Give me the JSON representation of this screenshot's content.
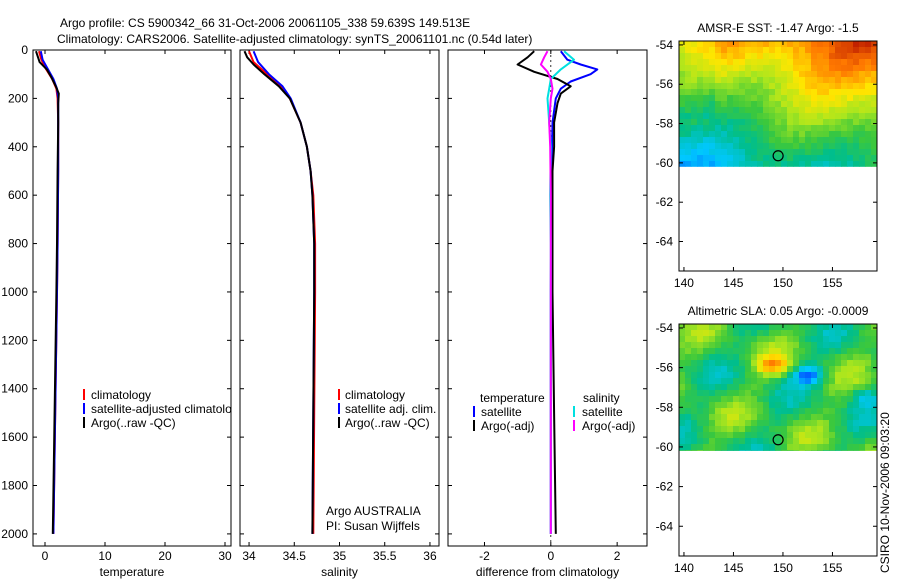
{
  "header": {
    "title_line1": "Argo profile: CS 5900342_66 31-Oct-2006 20061105_338 59.639S 149.513E",
    "title_line2": "Climatology: CARS2006. Satellite-adjusted climatology: synTS_20061101.nc (0.54d later)"
  },
  "credit": "CSIRO 10-Nov-2006 09:03:20",
  "colors": {
    "climatology": "#ff0000",
    "satellite": "#0000ff",
    "argo": "#000000",
    "sal_satellite": "#00e0e0",
    "sal_argo": "#ff00ff"
  },
  "chart_data": [
    {
      "id": "temperature",
      "type": "line",
      "xlabel": "temperature",
      "ylabel": "",
      "xlim": [
        -2,
        31
      ],
      "ylim": [
        2050,
        0
      ],
      "xticks": [
        0,
        10,
        20,
        30
      ],
      "xtick_labels": [
        "0",
        "10",
        "20",
        "30"
      ],
      "yticks": [
        0,
        200,
        400,
        600,
        800,
        1000,
        1200,
        1400,
        1600,
        1800,
        2000
      ],
      "ytick_labels": [
        "0",
        "200",
        "400",
        "600",
        "800",
        "1000",
        "1200",
        "1400",
        "1600",
        "1800",
        "2000"
      ],
      "legend": [
        "climatology",
        "satellite-adjusted climatology",
        "Argo(..raw -QC)"
      ],
      "series": [
        {
          "name": "climatology",
          "color": "#ff0000",
          "depth": [
            5,
            40,
            80,
            120,
            160,
            200,
            300,
            500,
            800,
            1000,
            1500,
            2000
          ],
          "values": [
            -1.0,
            -0.6,
            0.2,
            1.2,
            1.9,
            2.1,
            2.2,
            2.2,
            2.1,
            2.0,
            1.7,
            1.4
          ]
        },
        {
          "name": "satellite",
          "color": "#0000ff",
          "depth": [
            5,
            40,
            80,
            120,
            160,
            200,
            300,
            500,
            800,
            1000,
            1500,
            2000
          ],
          "values": [
            -0.7,
            -0.4,
            0.5,
            1.4,
            2.0,
            2.2,
            2.2,
            2.2,
            2.1,
            2.0,
            1.7,
            1.4
          ]
        },
        {
          "name": "Argo",
          "color": "#000000",
          "depth": [
            5,
            20,
            50,
            80,
            110,
            150,
            180,
            220,
            300,
            500,
            800,
            1000,
            1500,
            2000
          ],
          "values": [
            -1.5,
            -1.3,
            -0.9,
            0.3,
            1.0,
            1.8,
            2.3,
            2.2,
            2.2,
            2.1,
            2.0,
            1.9,
            1.6,
            1.3
          ]
        }
      ]
    },
    {
      "id": "salinity",
      "type": "line",
      "xlabel": "salinity",
      "ylabel": "",
      "xlim": [
        33.9,
        36.1
      ],
      "ylim": [
        2050,
        0
      ],
      "xticks": [
        34,
        34.5,
        35,
        35.5,
        36
      ],
      "xtick_labels": [
        "34",
        "34.5",
        "35",
        "35.5",
        "36"
      ],
      "legend": [
        "climatology",
        "satellite adj. clim.",
        "Argo(..raw -QC)"
      ],
      "annotation": [
        "Argo AUSTRALIA",
        "PI: Susan Wijffels"
      ],
      "series": [
        {
          "name": "climatology",
          "color": "#ff0000",
          "depth": [
            5,
            50,
            100,
            150,
            200,
            300,
            400,
            500,
            600,
            800,
            1000,
            1500,
            2000
          ],
          "values": [
            34.0,
            34.05,
            34.2,
            34.35,
            34.45,
            34.57,
            34.64,
            34.68,
            34.71,
            34.73,
            34.73,
            34.72,
            34.71
          ]
        },
        {
          "name": "satellite",
          "color": "#0000ff",
          "depth": [
            5,
            50,
            100,
            150,
            200,
            300,
            400,
            500,
            600,
            800,
            1000,
            1500,
            2000
          ],
          "values": [
            34.05,
            34.1,
            34.22,
            34.37,
            34.46,
            34.57,
            34.64,
            34.68,
            34.7,
            34.72,
            34.72,
            34.71,
            34.7
          ]
        },
        {
          "name": "Argo",
          "color": "#000000",
          "depth": [
            5,
            30,
            60,
            100,
            150,
            200,
            300,
            400,
            500,
            600,
            800,
            1000,
            1500,
            2000
          ],
          "values": [
            33.95,
            33.98,
            34.05,
            34.17,
            34.33,
            34.45,
            34.57,
            34.64,
            34.68,
            34.7,
            34.72,
            34.72,
            34.71,
            34.7
          ]
        }
      ]
    },
    {
      "id": "difference",
      "type": "line",
      "xlabel": "difference from climatology",
      "ylabel": "",
      "xlim": [
        -3.1,
        2.9
      ],
      "ylim": [
        2050,
        0
      ],
      "xticks": [
        -2,
        0,
        2
      ],
      "xtick_labels": [
        "-2",
        "0",
        "2"
      ],
      "legend_groups": [
        {
          "title": "temperature",
          "items": [
            "satellite",
            "Argo(-adj)"
          ]
        },
        {
          "title": "salinity",
          "items": [
            "satellite",
            "Argo(-adj)"
          ]
        }
      ],
      "series": [
        {
          "name": "temperature satellite",
          "color": "#0000ff",
          "depth": [
            5,
            40,
            60,
            80,
            100,
            130,
            160,
            200,
            300,
            500,
            1000,
            1500,
            2000
          ],
          "values": [
            0.3,
            0.5,
            0.9,
            1.4,
            1.2,
            0.6,
            0.3,
            0.15,
            0.05,
            0.02,
            0.0,
            0.0,
            0.0
          ]
        },
        {
          "name": "temperature Argo(-adj)",
          "color": "#000000",
          "depth": [
            5,
            30,
            60,
            90,
            120,
            150,
            180,
            220,
            300,
            400,
            500,
            1000,
            1500,
            2000
          ],
          "values": [
            -0.5,
            -0.7,
            -1.0,
            -0.5,
            0.2,
            0.6,
            0.3,
            0.2,
            0.1,
            0.1,
            0.05,
            0.05,
            0.1,
            0.15
          ]
        },
        {
          "name": "salinity satellite",
          "color": "#00e0e0",
          "depth": [
            5,
            40,
            80,
            120,
            160,
            200,
            300,
            400,
            600,
            800,
            1000,
            1500,
            2000
          ],
          "values": [
            0.4,
            0.7,
            0.3,
            0.0,
            -0.05,
            -0.1,
            -0.05,
            0.0,
            -0.02,
            0.0,
            0.0,
            0.0,
            0.0
          ]
        },
        {
          "name": "salinity Argo(-adj)",
          "color": "#ff00ff",
          "depth": [
            5,
            30,
            60,
            90,
            120,
            160,
            200,
            300,
            400,
            600,
            1000,
            1500,
            2000
          ],
          "values": [
            -0.1,
            -0.2,
            -0.3,
            -0.1,
            0.0,
            0.05,
            0.0,
            -0.05,
            -0.02,
            0.0,
            0.0,
            0.0,
            0.0
          ]
        }
      ]
    },
    {
      "id": "sst-map",
      "type": "heatmap",
      "title": "AMSR-E SST: -1.47 Argo: -1.5",
      "xticks": [
        140,
        145,
        150,
        155
      ],
      "xtick_labels": [
        "140",
        "145",
        "150",
        "155"
      ],
      "yticks": [
        -54,
        -56,
        -58,
        -60,
        -62,
        -64
      ],
      "ytick_labels": [
        "-54",
        "-56",
        "-58",
        "-60",
        "-62",
        "-64"
      ],
      "xlim": [
        139.5,
        159.5
      ],
      "ylim": [
        -65.5,
        -53.8
      ],
      "data_ylim": [
        -60.2,
        -53.8
      ],
      "marker": {
        "lon": 149.513,
        "lat": -59.639
      }
    },
    {
      "id": "sla-map",
      "type": "heatmap",
      "title": "Altimetric SLA: 0.05 Argo: -0.0009",
      "xticks": [
        140,
        145,
        150,
        155
      ],
      "xtick_labels": [
        "140",
        "145",
        "150",
        "155"
      ],
      "yticks": [
        -54,
        -56,
        -58,
        -60,
        -62,
        -64
      ],
      "ytick_labels": [
        "-54",
        "-56",
        "-58",
        "-60",
        "-62",
        "-64"
      ],
      "xlim": [
        139.5,
        159.5
      ],
      "ylim": [
        -65.5,
        -53.8
      ],
      "data_ylim": [
        -60.2,
        -53.8
      ],
      "marker": {
        "lon": 149.513,
        "lat": -59.639
      }
    }
  ]
}
